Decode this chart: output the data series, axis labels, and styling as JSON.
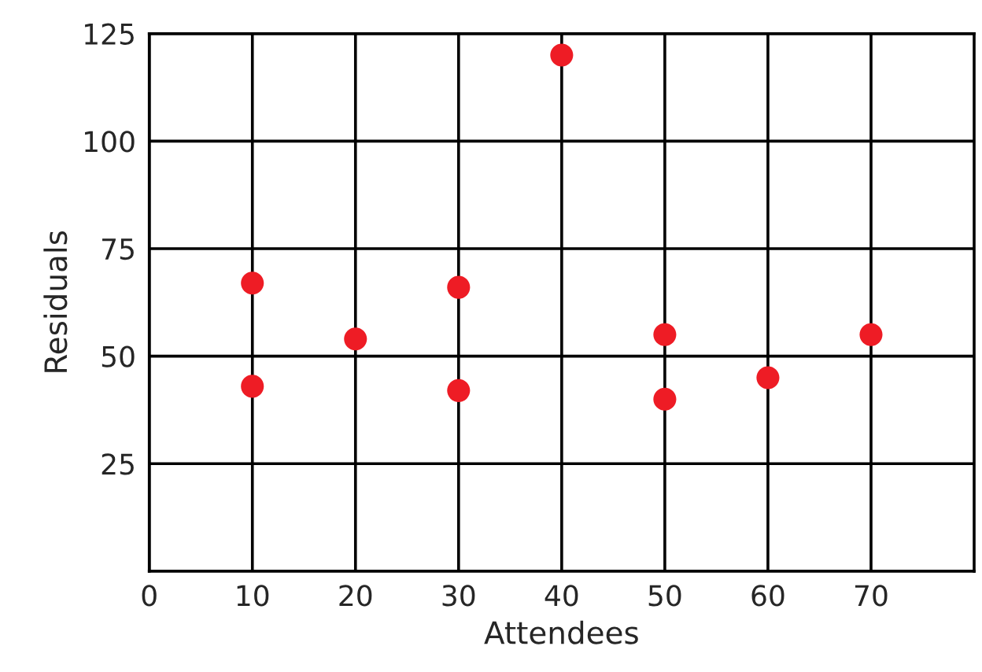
{
  "chart_data": {
    "type": "scatter",
    "xlabel": "Attendees",
    "ylabel": "Residuals",
    "x": [
      10,
      10,
      20,
      30,
      30,
      40,
      50,
      50,
      60,
      70
    ],
    "series": [
      {
        "color": "#ee1c25",
        "values": [
          67,
          43,
          54,
          66,
          42,
          120,
          55,
          40,
          45,
          55
        ]
      }
    ],
    "xlim": [
      0,
      80
    ],
    "xticks": [
      0,
      10,
      20,
      30,
      40,
      50,
      60,
      70
    ],
    "ylim": [
      0,
      125
    ],
    "yticks": [
      25,
      50,
      75,
      100,
      125
    ],
    "grid": true,
    "marker": "circle"
  }
}
